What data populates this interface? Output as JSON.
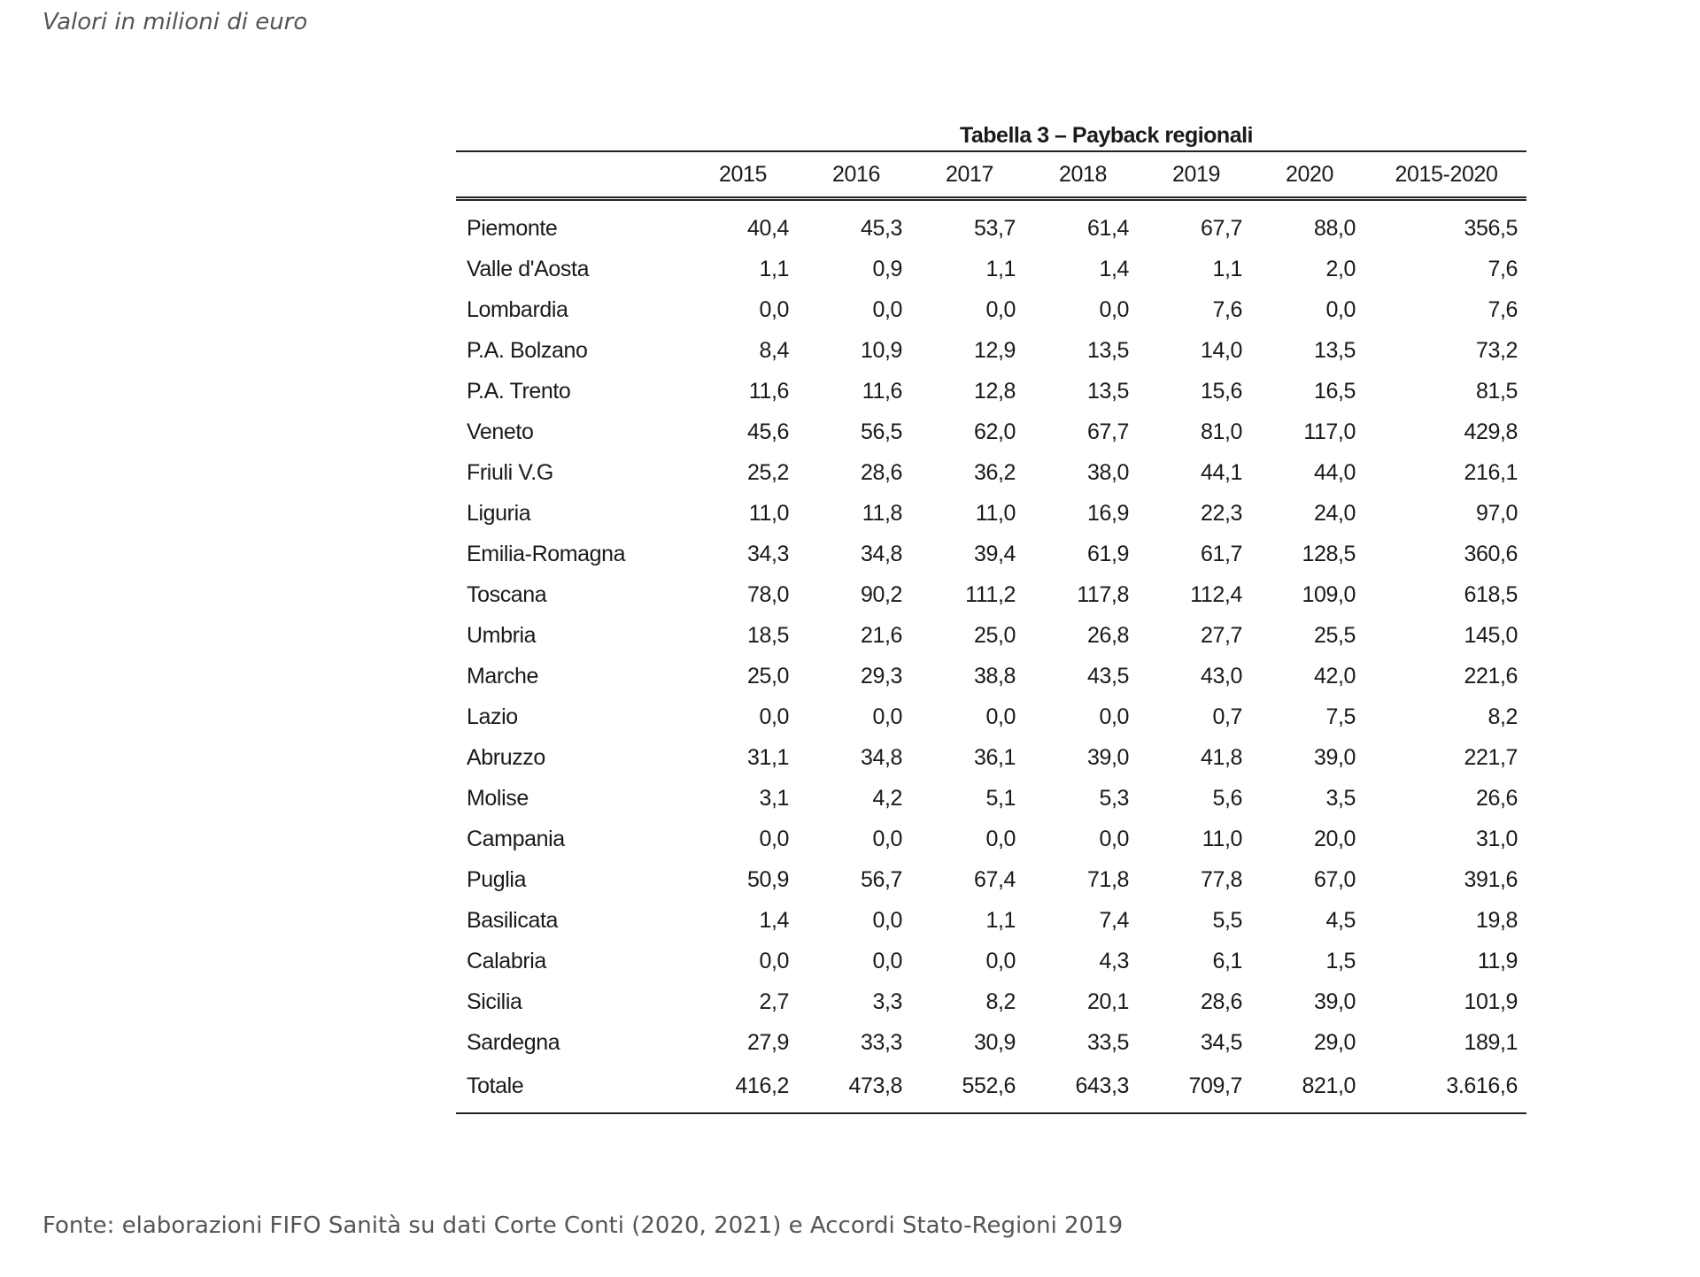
{
  "note": "Valori in milioni di euro",
  "table": {
    "title": "Tabella 3 – Payback regionali",
    "columns": [
      "",
      "2015",
      "2016",
      "2017",
      "2018",
      "2019",
      "2020",
      "2015-2020"
    ],
    "rows": [
      [
        "Piemonte",
        "40,4",
        "45,3",
        "53,7",
        "61,4",
        "67,7",
        "88,0",
        "356,5"
      ],
      [
        "Valle d'Aosta",
        "1,1",
        "0,9",
        "1,1",
        "1,4",
        "1,1",
        "2,0",
        "7,6"
      ],
      [
        "Lombardia",
        "0,0",
        "0,0",
        "0,0",
        "0,0",
        "7,6",
        "0,0",
        "7,6"
      ],
      [
        "P.A. Bolzano",
        "8,4",
        "10,9",
        "12,9",
        "13,5",
        "14,0",
        "13,5",
        "73,2"
      ],
      [
        "P.A. Trento",
        "11,6",
        "11,6",
        "12,8",
        "13,5",
        "15,6",
        "16,5",
        "81,5"
      ],
      [
        "Veneto",
        "45,6",
        "56,5",
        "62,0",
        "67,7",
        "81,0",
        "117,0",
        "429,8"
      ],
      [
        "Friuli V.G",
        "25,2",
        "28,6",
        "36,2",
        "38,0",
        "44,1",
        "44,0",
        "216,1"
      ],
      [
        "Liguria",
        "11,0",
        "11,8",
        "11,0",
        "16,9",
        "22,3",
        "24,0",
        "97,0"
      ],
      [
        "Emilia-Romagna",
        "34,3",
        "34,8",
        "39,4",
        "61,9",
        "61,7",
        "128,5",
        "360,6"
      ],
      [
        "Toscana",
        "78,0",
        "90,2",
        "111,2",
        "117,8",
        "112,4",
        "109,0",
        "618,5"
      ],
      [
        "Umbria",
        "18,5",
        "21,6",
        "25,0",
        "26,8",
        "27,7",
        "25,5",
        "145,0"
      ],
      [
        "Marche",
        "25,0",
        "29,3",
        "38,8",
        "43,5",
        "43,0",
        "42,0",
        "221,6"
      ],
      [
        "Lazio",
        "0,0",
        "0,0",
        "0,0",
        "0,0",
        "0,7",
        "7,5",
        "8,2"
      ],
      [
        "Abruzzo",
        "31,1",
        "34,8",
        "36,1",
        "39,0",
        "41,8",
        "39,0",
        "221,7"
      ],
      [
        "Molise",
        "3,1",
        "4,2",
        "5,1",
        "5,3",
        "5,6",
        "3,5",
        "26,6"
      ],
      [
        "Campania",
        "0,0",
        "0,0",
        "0,0",
        "0,0",
        "11,0",
        "20,0",
        "31,0"
      ],
      [
        "Puglia",
        "50,9",
        "56,7",
        "67,4",
        "71,8",
        "77,8",
        "67,0",
        "391,6"
      ],
      [
        "Basilicata",
        "1,4",
        "0,0",
        "1,1",
        "7,4",
        "5,5",
        "4,5",
        "19,8"
      ],
      [
        "Calabria",
        "0,0",
        "0,0",
        "0,0",
        "4,3",
        "6,1",
        "1,5",
        "11,9"
      ],
      [
        "Sicilia",
        "2,7",
        "3,3",
        "8,2",
        "20,1",
        "28,6",
        "39,0",
        "101,9"
      ],
      [
        "Sardegna",
        "27,9",
        "33,3",
        "30,9",
        "33,5",
        "34,5",
        "29,0",
        "189,1"
      ],
      [
        "Totale",
        "416,2",
        "473,8",
        "552,6",
        "643,3",
        "709,7",
        "821,0",
        "3.616,6"
      ]
    ]
  },
  "source": "Fonte: elaborazioni FIFO Sanità su dati Corte Conti (2020, 2021) e Accordi Stato-Regioni 2019"
}
